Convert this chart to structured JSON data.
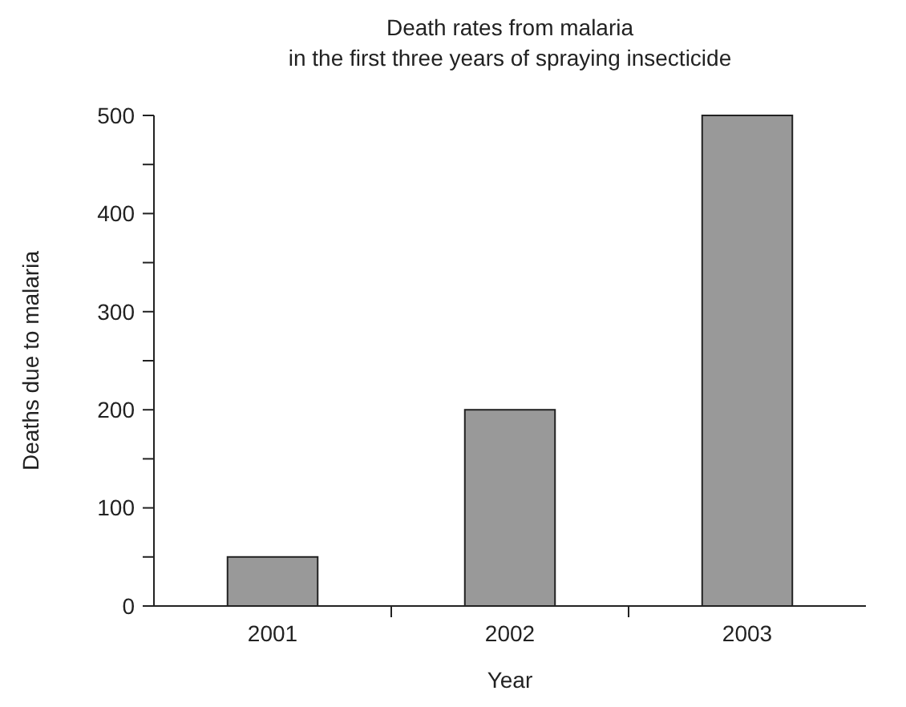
{
  "chart_data": {
    "type": "bar",
    "title": "Death rates from malaria\nin the first three years of spraying insecticide",
    "xlabel": "Year",
    "ylabel": "Deaths due to malaria",
    "categories": [
      "2001",
      "2002",
      "2003"
    ],
    "values": [
      50,
      200,
      500
    ],
    "color": "#999999",
    "ylim": [
      0,
      500
    ],
    "yticks": [
      0,
      {
        "value": 50,
        "label": null
      },
      100,
      {
        "value": 150,
        "label": null
      },
      200,
      {
        "value": 250,
        "label": null
      },
      300,
      {
        "value": 350,
        "label": null
      },
      400,
      {
        "value": 450,
        "label": null
      },
      500
    ],
    "grid": false
  }
}
